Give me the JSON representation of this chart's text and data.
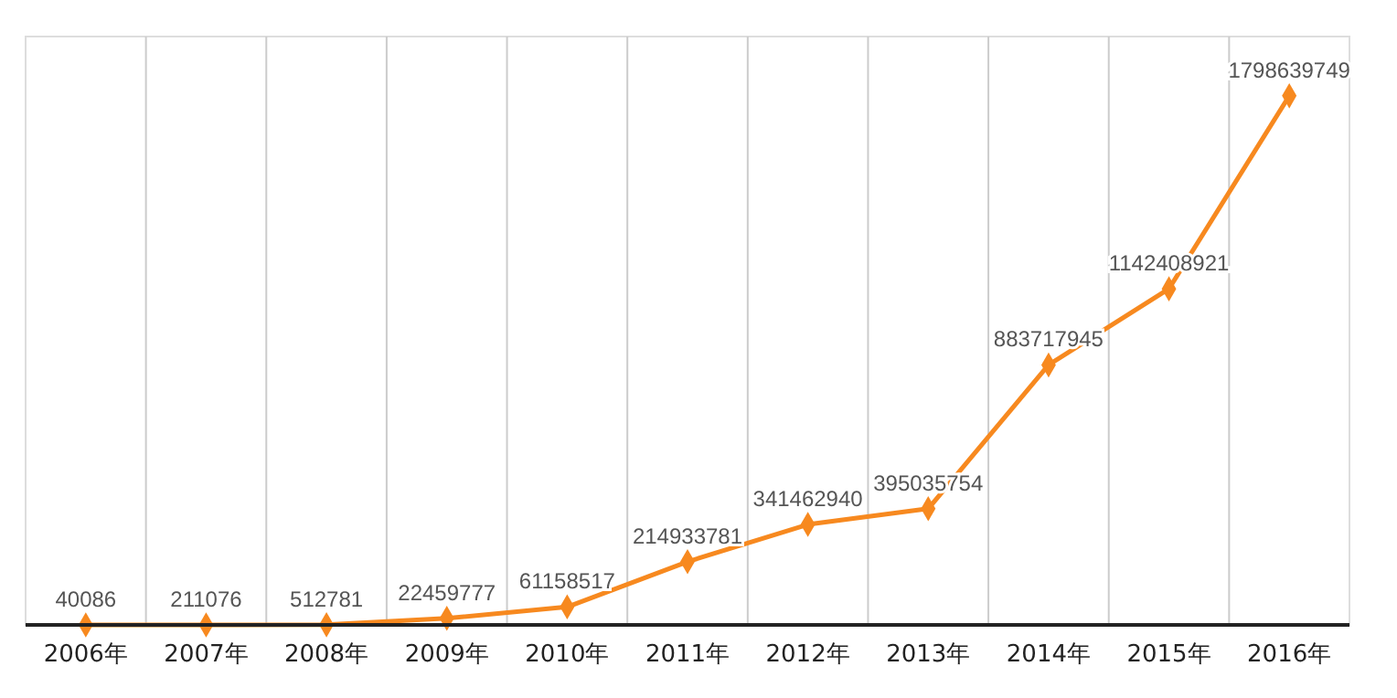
{
  "chart_data": {
    "type": "line",
    "categories": [
      "2006年",
      "2007年",
      "2008年",
      "2009年",
      "2010年",
      "2011年",
      "2012年",
      "2013年",
      "2014年",
      "2015年",
      "2016年"
    ],
    "series": [
      {
        "color": "#f7891f",
        "values": [
          40086,
          211076,
          512781,
          22459777,
          61158517,
          214933781,
          341462940,
          395035754,
          883717945,
          1142408921,
          1798639749
        ]
      }
    ],
    "ylim": [
      0,
      2000000000
    ],
    "tick_labels": "x",
    "grid": "x",
    "marker": "diamond",
    "data_labels": true
  }
}
